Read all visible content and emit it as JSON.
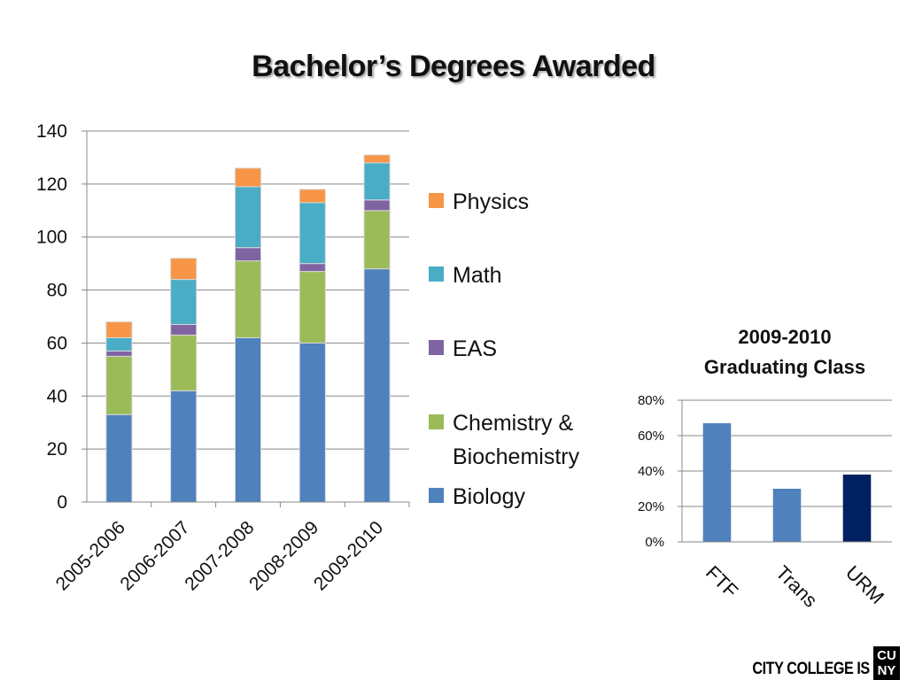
{
  "title": "Bachelor’s Degrees Awarded",
  "chart_data": [
    {
      "type": "bar",
      "stacked": true,
      "title": "",
      "categories": [
        "2005-2006",
        "2006-2007",
        "2007-2008",
        "2008-2009",
        "2009-2010"
      ],
      "series": [
        {
          "name": "Biology",
          "color": "#4f81bd",
          "values": [
            33,
            42,
            62,
            60,
            88
          ]
        },
        {
          "name": "Chemistry & Biochemistry",
          "color": "#9bbb59",
          "values": [
            22,
            21,
            29,
            27,
            22
          ]
        },
        {
          "name": "EAS",
          "color": "#8064a2",
          "values": [
            2,
            4,
            5,
            3,
            4
          ]
        },
        {
          "name": "Math",
          "color": "#4bacc6",
          "values": [
            5,
            17,
            23,
            23,
            14
          ]
        },
        {
          "name": "Physics",
          "color": "#f79646",
          "values": [
            6,
            8,
            7,
            5,
            3
          ]
        }
      ],
      "legend_order": [
        "Physics",
        "Math",
        "EAS",
        "Chemistry & Biochemistry",
        "Biology"
      ],
      "legend_lines": {
        "Chemistry & Biochemistry": [
          "Chemistry &",
          "Biochemistry"
        ]
      },
      "yticks": [
        "0",
        "20",
        "40",
        "60",
        "80",
        "100",
        "120",
        "140"
      ],
      "ylim": [
        0,
        140
      ],
      "grid": true,
      "legend_position": "right"
    },
    {
      "type": "bar",
      "title_lines": [
        "2009-2010",
        "Graduating Class"
      ],
      "categories": [
        "FTF",
        "Trans",
        "URM"
      ],
      "values": [
        67,
        30,
        38
      ],
      "colors": [
        "#4f81bd",
        "#4f81bd",
        "#002060"
      ],
      "yticks": [
        "0%",
        "20%",
        "40%",
        "60%",
        "80%"
      ],
      "ylim": [
        0,
        80
      ],
      "grid": true
    }
  ],
  "footer": {
    "text": "CITY COLLEGE IS",
    "logo_top": "CU",
    "logo_bottom": "NY"
  }
}
